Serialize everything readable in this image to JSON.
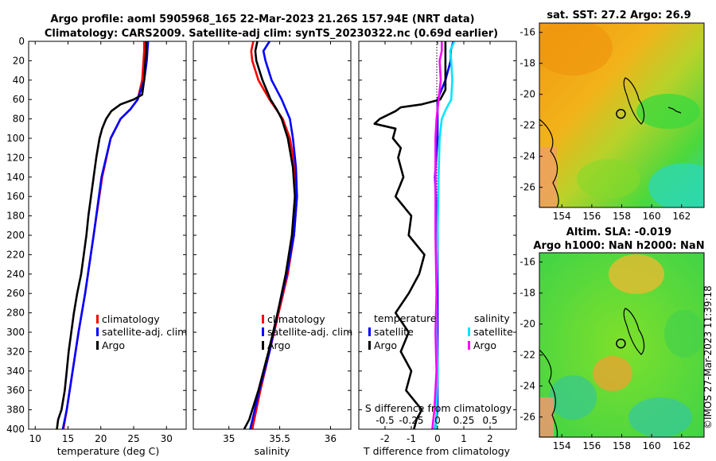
{
  "titles": {
    "line1": "Argo profile: aoml 5905968_165 22-Mar-2023 21.26S 157.94E (NRT data)",
    "line2": "Climatology: CARS2009. Satellite-adj clim: synTS_20230322.nc (0.69d earlier)",
    "sst": "sat. SST: 27.2 Argo: 26.9",
    "sla1": "Altim. SLA: -0.019",
    "sla2": "Argo h1000: NaN h2000: NaN",
    "side": "©IMOS 27-Mar-2023 11:39:18"
  },
  "colors": {
    "climatology": "#ff0000",
    "satellite": "#0000ff",
    "argo": "#000000",
    "sal_satellite": "#00e5ff",
    "sal_argo": "#ff00ff"
  },
  "chart_data": [
    {
      "type": "line",
      "name": "temperature-panel",
      "xlabel": "temperature (deg C)",
      "ylim": [
        0,
        400
      ],
      "xlim": [
        9,
        33
      ],
      "xticks": [
        10,
        15,
        20,
        25,
        30
      ],
      "xtick_labels": [
        "10",
        "15",
        "20",
        "25",
        "30"
      ],
      "yticks": [
        0,
        20,
        40,
        60,
        80,
        100,
        120,
        140,
        160,
        180,
        200,
        220,
        240,
        260,
        280,
        300,
        320,
        340,
        360,
        380,
        400
      ],
      "ytick_labels": [
        "0",
        "20",
        "40",
        "60",
        "80",
        "100",
        "120",
        "140",
        "160",
        "180",
        "200",
        "220",
        "240",
        "260",
        "280",
        "300",
        "320",
        "340",
        "360",
        "380",
        "400"
      ],
      "legend": [
        "climatology",
        "satellite-adj. clim",
        "Argo"
      ],
      "series": [
        {
          "name": "climatology",
          "color": "#ff0000",
          "depth": [
            0,
            10,
            20,
            40,
            60,
            70,
            80,
            100,
            140,
            200,
            260,
            300,
            340,
            380,
            400
          ],
          "values": [
            26.6,
            26.6,
            26.5,
            26.3,
            25.6,
            24.5,
            23.0,
            21.5,
            20.2,
            18.9,
            17.6,
            16.6,
            15.7,
            14.8,
            14.3
          ]
        },
        {
          "name": "satellite-adj. clim",
          "color": "#0000ff",
          "depth": [
            0,
            10,
            20,
            40,
            60,
            70,
            80,
            100,
            140,
            200,
            260,
            300,
            340,
            380,
            400
          ],
          "values": [
            27.2,
            27.1,
            27.0,
            26.6,
            25.6,
            24.5,
            23.0,
            21.5,
            20.1,
            18.9,
            17.6,
            16.6,
            15.7,
            14.8,
            14.2
          ]
        },
        {
          "name": "Argo",
          "color": "#000000",
          "depth": [
            0,
            10,
            20,
            40,
            55,
            60,
            65,
            72,
            80,
            90,
            100,
            120,
            140,
            160,
            180,
            200,
            220,
            240,
            260,
            280,
            300,
            320,
            340,
            360,
            380,
            390,
            400
          ],
          "values": [
            26.9,
            26.9,
            26.8,
            26.6,
            26.3,
            25.0,
            23.0,
            21.6,
            20.8,
            20.2,
            19.8,
            19.3,
            18.9,
            18.5,
            18.1,
            17.8,
            17.4,
            17.0,
            16.4,
            15.9,
            15.5,
            15.1,
            14.8,
            14.5,
            14.0,
            13.5,
            13.3
          ]
        }
      ]
    },
    {
      "type": "line",
      "name": "salinity-panel",
      "xlabel": "salinity",
      "ylim": [
        0,
        400
      ],
      "xlim": [
        34.65,
        36.2
      ],
      "xticks": [
        35,
        35.5,
        36
      ],
      "xtick_labels": [
        "35",
        "35.5",
        "36"
      ],
      "legend": [
        "climatology",
        "satellite-adj. clim",
        "Argo"
      ],
      "series": [
        {
          "name": "climatology",
          "color": "#ff0000",
          "depth": [
            0,
            10,
            20,
            40,
            60,
            80,
            100,
            130,
            160,
            200,
            240,
            280,
            320,
            360,
            400
          ],
          "values": [
            35.24,
            35.22,
            35.23,
            35.29,
            35.4,
            35.53,
            35.6,
            35.65,
            35.67,
            35.64,
            35.58,
            35.49,
            35.4,
            35.31,
            35.23
          ]
        },
        {
          "name": "satellite-adj. clim",
          "color": "#0000ff",
          "depth": [
            0,
            10,
            20,
            40,
            60,
            80,
            100,
            130,
            160,
            200,
            240,
            280,
            320,
            360,
            400
          ],
          "values": [
            35.4,
            35.34,
            35.36,
            35.42,
            35.52,
            35.6,
            35.63,
            35.66,
            35.67,
            35.64,
            35.57,
            35.48,
            35.4,
            35.3,
            35.21
          ]
        },
        {
          "name": "Argo",
          "color": "#000000",
          "depth": [
            0,
            10,
            20,
            40,
            60,
            70,
            80,
            100,
            130,
            160,
            200,
            240,
            280,
            320,
            360,
            390,
            400
          ],
          "values": [
            35.28,
            35.26,
            35.27,
            35.33,
            35.41,
            35.47,
            35.52,
            35.58,
            35.63,
            35.65,
            35.62,
            35.56,
            35.48,
            35.39,
            35.29,
            35.2,
            35.15
          ]
        }
      ]
    },
    {
      "type": "line",
      "name": "difference-panel",
      "xlabel": "T difference from climatology",
      "secondary_label": "S difference from climatology",
      "ylim": [
        0,
        400
      ],
      "xlim": [
        -3,
        3
      ],
      "xticks": [
        -2,
        -1,
        0,
        1,
        2
      ],
      "xtick_labels": [
        "-2",
        "-1",
        "0",
        "1",
        "2"
      ],
      "s_ticks": [
        -0.5,
        -0.25,
        0,
        0.25,
        0.5
      ],
      "s_tick_labels": [
        "-0.5",
        "-0.25",
        "0",
        "0.25",
        "0.5"
      ],
      "s_xlim": [
        -0.75,
        0.75
      ],
      "legend_temperature": [
        "temperature",
        "satellite",
        "Argo"
      ],
      "legend_salinity": [
        "salinity",
        "satellite",
        "Argo"
      ],
      "series": [
        {
          "name": "T satellite",
          "color": "#0000ff",
          "depth": [
            0,
            10,
            20,
            40,
            60,
            70,
            80,
            100,
            140,
            200,
            260,
            300,
            340,
            380,
            400
          ],
          "values": [
            0.6,
            0.5,
            0.5,
            0.3,
            0.0,
            0.0,
            0.0,
            0.0,
            -0.1,
            0.0,
            0.0,
            0.0,
            0.0,
            0.0,
            -0.1
          ]
        },
        {
          "name": "T Argo",
          "color": "#000000",
          "depth": [
            0,
            50,
            60,
            65,
            68,
            72,
            76,
            80,
            85,
            90,
            100,
            110,
            120,
            140,
            160,
            180,
            200,
            220,
            240,
            260,
            280,
            300,
            320,
            340,
            360,
            380,
            390,
            400
          ],
          "values": [
            0.3,
            0.3,
            0.1,
            -0.6,
            -1.4,
            -1.6,
            -1.9,
            -2.2,
            -2.4,
            -1.6,
            -1.7,
            -1.4,
            -1.5,
            -1.3,
            -1.6,
            -1.0,
            -1.1,
            -0.5,
            -0.7,
            -1.1,
            -1.6,
            -1.1,
            -1.4,
            -1.0,
            -1.2,
            -0.6,
            -0.8,
            -0.9
          ]
        },
        {
          "name": "S satellite",
          "color": "#00e5ff",
          "depth": [
            0,
            10,
            20,
            40,
            60,
            70,
            80,
            100,
            140,
            200,
            260,
            300,
            340,
            380,
            400
          ],
          "values": [
            0.16,
            0.12,
            0.13,
            0.14,
            0.13,
            0.08,
            0.04,
            0.02,
            0.01,
            0.0,
            -0.01,
            -0.01,
            0.0,
            -0.01,
            -0.02
          ]
        },
        {
          "name": "S Argo",
          "color": "#ff00ff",
          "depth": [
            0,
            10,
            20,
            40,
            60,
            80,
            100,
            140,
            200,
            260,
            300,
            340,
            380,
            400
          ],
          "values": [
            0.04,
            0.04,
            0.02,
            0.03,
            0.01,
            -0.01,
            -0.02,
            -0.02,
            -0.02,
            -0.01,
            -0.02,
            -0.01,
            -0.03,
            -0.05
          ]
        }
      ]
    },
    {
      "type": "heatmap",
      "name": "sst-map",
      "xlim": [
        152.5,
        163.5
      ],
      "ylim": [
        -27.3,
        -15.4
      ],
      "xticks": [
        154,
        156,
        158,
        160,
        162
      ],
      "xtick_labels": [
        "154",
        "156",
        "158",
        "160",
        "162"
      ],
      "yticks": [
        -16,
        -18,
        -20,
        -22,
        -24,
        -26
      ],
      "ytick_labels": [
        "-16",
        "-18",
        "-20",
        "-22",
        "-24",
        "-26"
      ],
      "marker": {
        "lon": 157.94,
        "lat": -21.26
      }
    },
    {
      "type": "heatmap",
      "name": "sla-map",
      "xlim": [
        152.5,
        163.5
      ],
      "ylim": [
        -27.3,
        -15.4
      ],
      "xticks": [
        154,
        156,
        158,
        160,
        162
      ],
      "xtick_labels": [
        "154",
        "156",
        "158",
        "160",
        "162"
      ],
      "yticks": [
        -16,
        -18,
        -20,
        -22,
        -24,
        -26
      ],
      "ytick_labels": [
        "-16",
        "-18",
        "-20",
        "-22",
        "-24",
        "-26"
      ],
      "marker": {
        "lon": 157.94,
        "lat": -21.26
      }
    }
  ]
}
